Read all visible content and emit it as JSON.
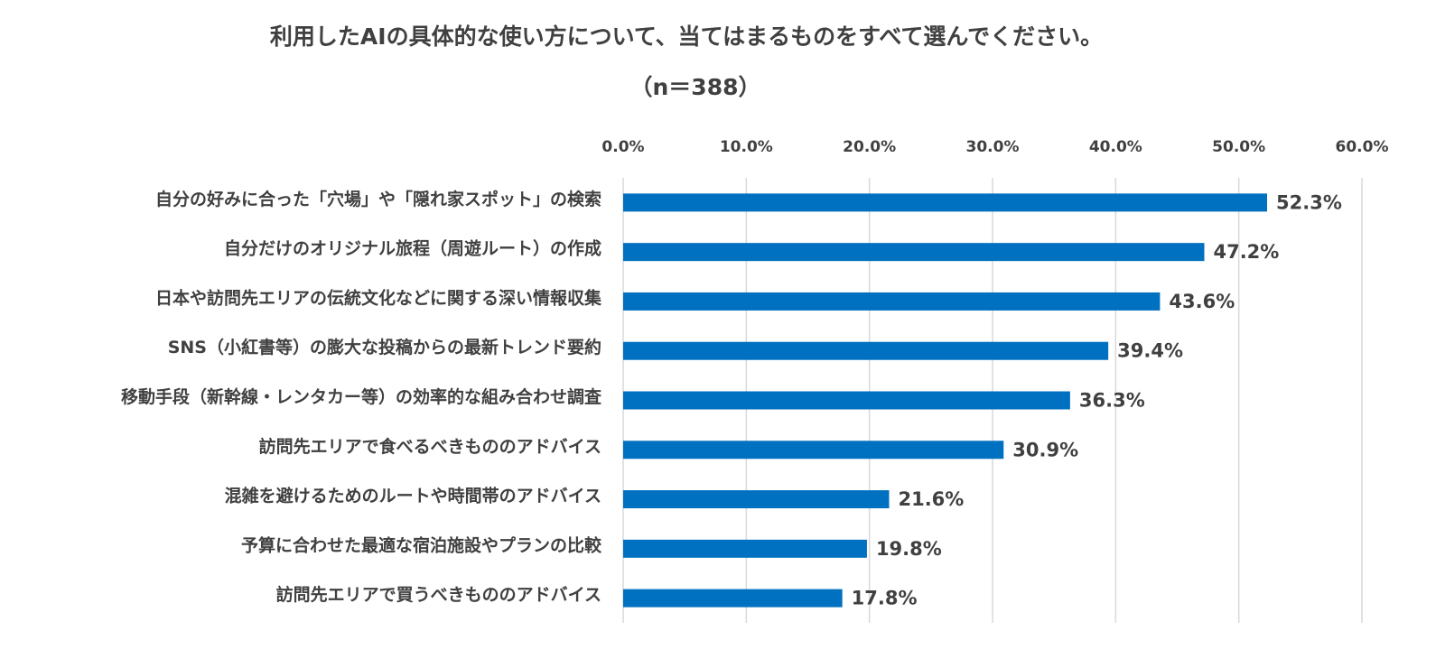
{
  "chart_data": {
    "type": "bar",
    "orientation": "horizontal",
    "title": "利用したAIの具体的な使い方について、当てはまるものをすべて選んでください。",
    "subtitle": "（n＝388）",
    "categories": [
      "自分の好みに合った「穴場」や「隠れ家スポット」の検索",
      "自分だけのオリジナル旅程（周遊ルート）の作成",
      "日本や訪問先エリアの伝統文化などに関する深い情報収集",
      "SNS（小紅書等）の膨大な投稿からの最新トレンド要約",
      "移動手段（新幹線・レンタカー等）の効率的な組み合わせ調査",
      "訪問先エリアで食べるべきもののアドバイス",
      "混雑を避けるためのルートや時間帯のアドバイス",
      "予算に合わせた最適な宿泊施設やプランの比較",
      "訪問先エリアで買うべきもののアドバイス"
    ],
    "values": [
      52.3,
      47.2,
      43.6,
      39.4,
      36.3,
      30.9,
      21.6,
      19.8,
      17.8
    ],
    "value_labels": [
      "52.3%",
      "47.2%",
      "43.6%",
      "39.4%",
      "36.3%",
      "30.9%",
      "21.6%",
      "19.8%",
      "17.8%"
    ],
    "color": "#0070c0",
    "xlim": [
      0,
      60
    ],
    "xticks": [
      {
        "value": 0,
        "label": "0.0%"
      },
      {
        "value": 10,
        "label": "10.0%"
      },
      {
        "value": 20,
        "label": "20.0%"
      },
      {
        "value": 30,
        "label": "30.0%"
      },
      {
        "value": 40,
        "label": "40.0%"
      },
      {
        "value": 50,
        "label": "50.0%"
      },
      {
        "value": 60,
        "label": "60.0%"
      }
    ],
    "grid": true
  }
}
